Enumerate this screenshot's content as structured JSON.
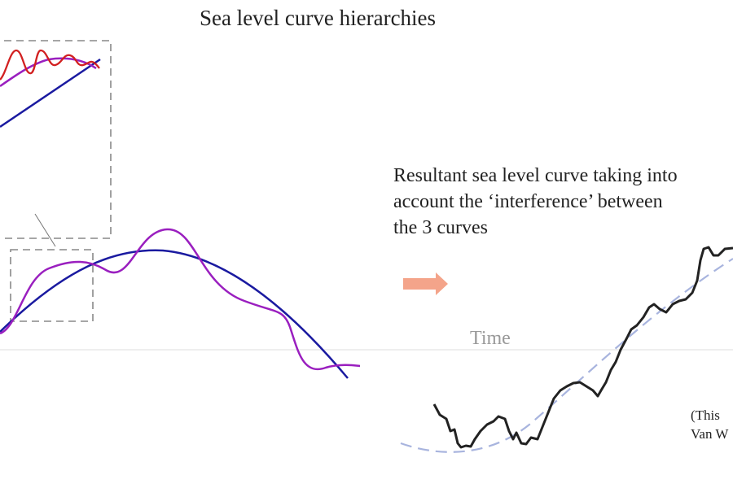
{
  "title": "Sea level curve hierarchies",
  "caption": {
    "lines": [
      "Resultant sea level curve taking into",
      "account the ‘interference’ between",
      "the 3 curves"
    ]
  },
  "axis_label": "Time",
  "note": {
    "lines": [
      "(This",
      "Van W"
    ]
  }
}
